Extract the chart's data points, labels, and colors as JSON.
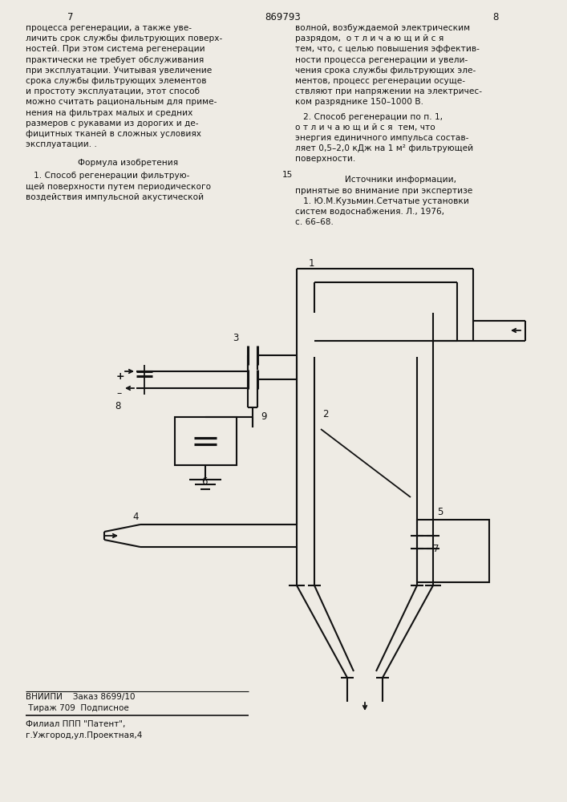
{
  "background_color": "#eeebe4",
  "text_color": "#111111",
  "line_color": "#111111",
  "page_left": "7",
  "page_center": "869793",
  "page_right": "8",
  "left_col_lines": [
    "процесса регенерации, а также уве-",
    "личить срок службы фильтрующих поверх-",
    "ностей. При этом система регенерации",
    "практически не требует обслуживания",
    "при эксплуатации. Учитывая увеличение",
    "срока службы фильтрующих элементов",
    "и простоту эксплуатации, этот способ",
    "можно считать рациональным для приме-",
    "нения на фильтрах малых и средних",
    "размеров с рукавами из дорогих и де-",
    "фицитных тканей в сложных условиях",
    "эксплуатации. ."
  ],
  "formula_heading": "Формула изобретения",
  "formula_lines": [
    "   1. Способ регенерации фильтрую-",
    "щей поверхности путем периодического",
    "воздействия импульсной акустической"
  ],
  "right_col_lines_1": [
    "волной, возбуждаемой электрическим",
    "разрядом,  о т л и ч а ю щ и й с я",
    "тем, что, с целью повышения эффектив-",
    "ности процесса регенерации и увели-",
    "чения срока службы фильтрующих эле-",
    "ментов, процесс регенерации осуще-",
    "ствляют при напряжении на электричес-",
    "ком разряднике 150–1000 В."
  ],
  "right_col_lines_2": [
    "   2. Способ регенерации по п. 1,",
    "о т л и ч а ю щ и й с я  тем, что",
    "энергия единичного импульса состав-",
    "ляет 0,5–2,0 кДж на 1 м² фильтрующей",
    "поверхности."
  ],
  "line15": "15",
  "sources_heading": "Источники информации,",
  "sources_lines": [
    "принятые во внимание при экспертизе",
    "   1. Ю.М.Кузьмин.Сетчатые установки",
    "систем водоснабжения. Л., 1976,",
    "с. 66–68."
  ],
  "footer1": "ВНИИПИ    Заказ 8699/10",
  "footer2": " Тираж 709  Подписное",
  "footer3": "Филиал ППП \"Патент\",",
  "footer4": "г.Ужгород,ул.Проектная,4"
}
